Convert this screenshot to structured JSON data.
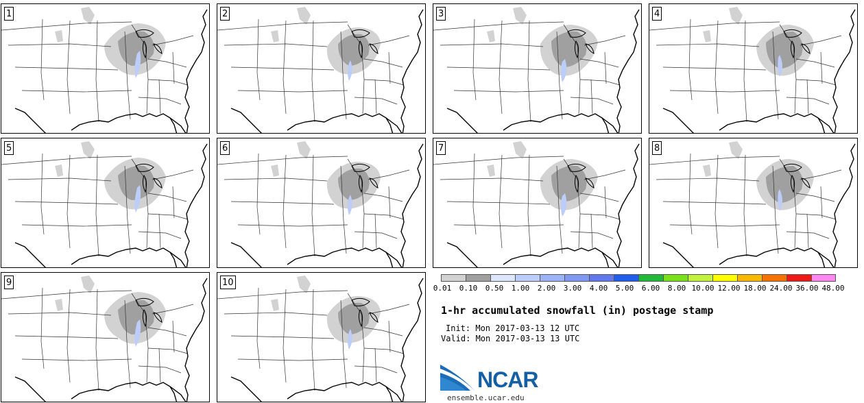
{
  "chart_data": {
    "type": "heatmap",
    "title": "1-hr accumulated snowfall (in) postage stamp",
    "init_line": "Init: Mon 2017-03-13 12 UTC",
    "valid_line": "Valid: Mon 2017-03-13 13 UTC",
    "members": [
      "1",
      "2",
      "3",
      "4",
      "5",
      "6",
      "7",
      "8",
      "9",
      "10"
    ],
    "colorbar": {
      "levels": [
        "0.01",
        "0.10",
        "0.50",
        "1.00",
        "2.00",
        "3.00",
        "4.00",
        "5.00",
        "6.00",
        "8.00",
        "10.00",
        "12.00",
        "18.00",
        "24.00",
        "36.00",
        "48.00"
      ],
      "colors": [
        "#d2d2d2",
        "#a0a0a0",
        "#dce6ff",
        "#bccdfa",
        "#9db3f7",
        "#7f99f2",
        "#6178ec",
        "#1f5eea",
        "#22b93a",
        "#7ae01a",
        "#c3f23c",
        "#ffff00",
        "#f9b800",
        "#f57200",
        "#ee1a1a",
        "#ff88f0"
      ]
    }
  },
  "logo": {
    "name": "NCAR",
    "url": "ensemble.ucar.edu",
    "color": "#1560a5"
  }
}
